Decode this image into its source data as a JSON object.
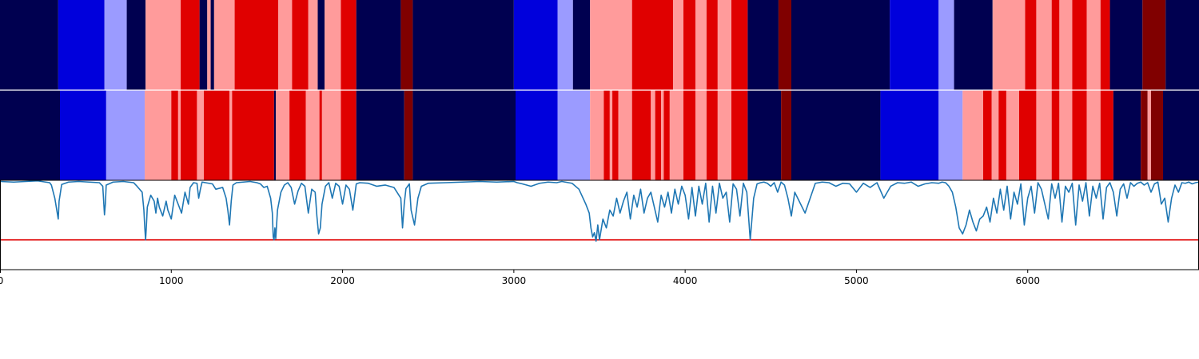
{
  "chart_data": {
    "type": "segmentation-strips-with-line",
    "x_range": [
      0,
      7000
    ],
    "x_ticks": [
      0,
      1000,
      2000,
      3000,
      4000,
      5000,
      6000
    ],
    "x_tick_labels": [
      "0",
      "1000",
      "2000",
      "3000",
      "4000",
      "5000",
      "6000"
    ],
    "colors": {
      "0": "#000050",
      "1": "#0000dc",
      "2": "#9b9bff",
      "3": "#ff9b9b",
      "4": "#e00000",
      "5": "#800000"
    },
    "strips": [
      {
        "segments": [
          [
            0,
            340,
            0
          ],
          [
            340,
            610,
            1
          ],
          [
            610,
            740,
            2
          ],
          [
            740,
            850,
            0
          ],
          [
            850,
            1055,
            3
          ],
          [
            1055,
            1165,
            4
          ],
          [
            1165,
            1210,
            0
          ],
          [
            1210,
            1230,
            3
          ],
          [
            1230,
            1250,
            0
          ],
          [
            1250,
            1370,
            3
          ],
          [
            1370,
            1625,
            4
          ],
          [
            1625,
            1705,
            3
          ],
          [
            1705,
            1800,
            4
          ],
          [
            1800,
            1855,
            3
          ],
          [
            1855,
            1895,
            0
          ],
          [
            1895,
            1990,
            3
          ],
          [
            1990,
            2080,
            4
          ],
          [
            2080,
            2340,
            0
          ],
          [
            2340,
            2410,
            5
          ],
          [
            2410,
            3000,
            0
          ],
          [
            3000,
            3255,
            1
          ],
          [
            3255,
            3345,
            2
          ],
          [
            3345,
            3445,
            0
          ],
          [
            3445,
            3690,
            3
          ],
          [
            3690,
            3930,
            4
          ],
          [
            3930,
            3990,
            3
          ],
          [
            3990,
            4060,
            4
          ],
          [
            4060,
            4125,
            3
          ],
          [
            4125,
            4190,
            4
          ],
          [
            4190,
            4270,
            3
          ],
          [
            4270,
            4365,
            4
          ],
          [
            4365,
            4545,
            0
          ],
          [
            4545,
            4620,
            5
          ],
          [
            4620,
            5195,
            0
          ],
          [
            5195,
            5480,
            1
          ],
          [
            5480,
            5570,
            2
          ],
          [
            5570,
            5795,
            0
          ],
          [
            5795,
            5985,
            3
          ],
          [
            5985,
            6050,
            4
          ],
          [
            6050,
            6140,
            3
          ],
          [
            6140,
            6185,
            4
          ],
          [
            6185,
            6260,
            3
          ],
          [
            6260,
            6345,
            4
          ],
          [
            6345,
            6425,
            3
          ],
          [
            6425,
            6480,
            4
          ],
          [
            6480,
            6670,
            0
          ],
          [
            6670,
            6805,
            5
          ],
          [
            6805,
            7000,
            0
          ]
        ]
      },
      {
        "segments": [
          [
            0,
            350,
            0
          ],
          [
            350,
            620,
            1
          ],
          [
            620,
            845,
            2
          ],
          [
            845,
            1000,
            3
          ],
          [
            1000,
            1040,
            4
          ],
          [
            1040,
            1055,
            3
          ],
          [
            1055,
            1150,
            4
          ],
          [
            1150,
            1190,
            3
          ],
          [
            1190,
            1340,
            4
          ],
          [
            1340,
            1355,
            3
          ],
          [
            1355,
            1600,
            4
          ],
          [
            1600,
            1610,
            0
          ],
          [
            1610,
            1690,
            3
          ],
          [
            1690,
            1785,
            4
          ],
          [
            1785,
            1865,
            3
          ],
          [
            1865,
            1880,
            4
          ],
          [
            1880,
            1990,
            3
          ],
          [
            1990,
            2080,
            4
          ],
          [
            2080,
            2360,
            0
          ],
          [
            2360,
            2410,
            5
          ],
          [
            2410,
            3010,
            0
          ],
          [
            3010,
            3255,
            1
          ],
          [
            3255,
            3445,
            2
          ],
          [
            3445,
            3525,
            3
          ],
          [
            3525,
            3560,
            4
          ],
          [
            3560,
            3575,
            3
          ],
          [
            3575,
            3610,
            4
          ],
          [
            3610,
            3690,
            3
          ],
          [
            3690,
            3800,
            4
          ],
          [
            3800,
            3825,
            3
          ],
          [
            3825,
            3860,
            4
          ],
          [
            3860,
            3875,
            3
          ],
          [
            3875,
            3910,
            4
          ],
          [
            3910,
            3990,
            3
          ],
          [
            3990,
            4060,
            4
          ],
          [
            4060,
            4125,
            3
          ],
          [
            4125,
            4190,
            4
          ],
          [
            4190,
            4270,
            3
          ],
          [
            4270,
            4365,
            4
          ],
          [
            4365,
            4560,
            0
          ],
          [
            4560,
            4620,
            5
          ],
          [
            4620,
            5140,
            0
          ],
          [
            5140,
            5480,
            1
          ],
          [
            5480,
            5620,
            2
          ],
          [
            5620,
            5740,
            3
          ],
          [
            5740,
            5790,
            4
          ],
          [
            5790,
            5830,
            3
          ],
          [
            5830,
            5875,
            4
          ],
          [
            5875,
            5950,
            3
          ],
          [
            5950,
            6050,
            4
          ],
          [
            6050,
            6140,
            3
          ],
          [
            6140,
            6185,
            4
          ],
          [
            6185,
            6260,
            3
          ],
          [
            6260,
            6345,
            4
          ],
          [
            6345,
            6425,
            3
          ],
          [
            6425,
            6500,
            4
          ],
          [
            6500,
            6660,
            0
          ],
          [
            6660,
            6700,
            5
          ],
          [
            6700,
            6720,
            3
          ],
          [
            6720,
            6790,
            5
          ],
          [
            6790,
            7000,
            0
          ]
        ]
      }
    ],
    "line": {
      "y_range": [
        0,
        1.5
      ],
      "threshold": 0.5,
      "threshold_color": "#e00000",
      "line_color": "#1f77b4",
      "x": [
        0,
        80,
        150,
        220,
        290,
        300,
        320,
        340,
        345,
        360,
        400,
        460,
        520,
        580,
        600,
        610,
        615,
        620,
        660,
        720,
        780,
        800,
        830,
        840,
        845,
        850,
        855,
        860,
        880,
        900,
        910,
        920,
        930,
        950,
        970,
        980,
        1000,
        1020,
        1040,
        1060,
        1080,
        1100,
        1110,
        1130,
        1150,
        1160,
        1170,
        1180,
        1200,
        1240,
        1260,
        1300,
        1320,
        1330,
        1340,
        1350,
        1360,
        1380,
        1420,
        1460,
        1500,
        1520,
        1540,
        1560,
        1580,
        1590,
        1595,
        1600,
        1605,
        1610,
        1620,
        1640,
        1660,
        1680,
        1700,
        1720,
        1740,
        1760,
        1780,
        1800,
        1820,
        1840,
        1850,
        1860,
        1870,
        1880,
        1900,
        1920,
        1940,
        1960,
        1980,
        2000,
        2020,
        2040,
        2060,
        2080,
        2100,
        2150,
        2200,
        2250,
        2300,
        2340,
        2350,
        2360,
        2370,
        2390,
        2400,
        2420,
        2440,
        2460,
        2500,
        2600,
        2700,
        2800,
        2900,
        3000,
        3020,
        3050,
        3100,
        3150,
        3200,
        3250,
        3280,
        3300,
        3340,
        3380,
        3420,
        3440,
        3450,
        3460,
        3470,
        3480,
        3490,
        3500,
        3520,
        3540,
        3560,
        3580,
        3600,
        3620,
        3640,
        3660,
        3680,
        3700,
        3720,
        3740,
        3760,
        3780,
        3800,
        3820,
        3840,
        3860,
        3880,
        3900,
        3920,
        3940,
        3960,
        3980,
        4000,
        4020,
        4040,
        4060,
        4080,
        4100,
        4120,
        4140,
        4160,
        4180,
        4200,
        4220,
        4240,
        4260,
        4280,
        4300,
        4320,
        4340,
        4360,
        4380,
        4400,
        4420,
        4440,
        4460,
        4480,
        4500,
        4520,
        4540,
        4560,
        4580,
        4600,
        4620,
        4640,
        4700,
        4760,
        4800,
        4840,
        4880,
        4920,
        4960,
        5000,
        5040,
        5080,
        5120,
        5160,
        5200,
        5240,
        5280,
        5320,
        5360,
        5400,
        5440,
        5480,
        5500,
        5520,
        5540,
        5560,
        5580,
        5600,
        5620,
        5640,
        5660,
        5680,
        5700,
        5720,
        5740,
        5760,
        5780,
        5800,
        5820,
        5840,
        5860,
        5880,
        5900,
        5920,
        5940,
        5960,
        5980,
        6000,
        6020,
        6040,
        6060,
        6080,
        6100,
        6120,
        6140,
        6160,
        6180,
        6200,
        6220,
        6240,
        6260,
        6280,
        6300,
        6320,
        6340,
        6360,
        6380,
        6400,
        6420,
        6440,
        6460,
        6480,
        6500,
        6520,
        6540,
        6560,
        6580,
        6600,
        6620,
        6640,
        6660,
        6680,
        6700,
        6720,
        6740,
        6760,
        6780,
        6800,
        6820,
        6840,
        6860,
        6880,
        6900,
        6920,
        6940,
        6960,
        6980,
        7000
      ],
      "y": [
        1.48,
        1.47,
        1.48,
        1.49,
        1.46,
        1.42,
        1.2,
        0.85,
        1.15,
        1.43,
        1.47,
        1.48,
        1.47,
        1.46,
        1.4,
        0.92,
        1.1,
        1.42,
        1.47,
        1.48,
        1.46,
        1.4,
        1.3,
        1.0,
        0.72,
        0.5,
        0.75,
        1.05,
        1.25,
        1.15,
        0.95,
        1.2,
        1.05,
        0.9,
        1.15,
        1.0,
        0.85,
        1.25,
        1.1,
        0.95,
        1.3,
        1.1,
        1.38,
        1.46,
        1.45,
        1.2,
        1.35,
        1.47,
        1.46,
        1.44,
        1.35,
        1.38,
        1.2,
        1.0,
        0.75,
        1.15,
        1.42,
        1.46,
        1.47,
        1.48,
        1.46,
        1.44,
        1.38,
        1.4,
        1.2,
        0.95,
        0.55,
        0.5,
        0.7,
        0.52,
        1.0,
        1.3,
        1.42,
        1.46,
        1.38,
        1.1,
        1.32,
        1.45,
        1.4,
        0.95,
        1.35,
        1.3,
        0.9,
        0.6,
        0.7,
        1.1,
        1.4,
        1.46,
        1.2,
        1.45,
        1.4,
        1.1,
        1.42,
        1.35,
        1.0,
        1.44,
        1.46,
        1.45,
        1.4,
        1.42,
        1.38,
        1.2,
        0.7,
        1.1,
        1.36,
        1.44,
        1.0,
        0.75,
        1.2,
        1.4,
        1.45,
        1.46,
        1.47,
        1.48,
        1.47,
        1.48,
        1.46,
        1.44,
        1.4,
        1.45,
        1.47,
        1.46,
        1.48,
        1.47,
        1.45,
        1.35,
        1.1,
        0.95,
        0.7,
        0.55,
        0.62,
        0.48,
        0.75,
        0.5,
        0.85,
        0.7,
        1.0,
        0.9,
        1.2,
        0.95,
        1.15,
        1.3,
        0.85,
        1.25,
        1.05,
        1.35,
        0.95,
        1.2,
        1.3,
        1.05,
        0.8,
        1.25,
        1.05,
        1.3,
        0.95,
        1.35,
        1.1,
        1.4,
        1.25,
        0.85,
        1.38,
        0.9,
        1.4,
        1.1,
        1.45,
        0.8,
        1.4,
        0.95,
        1.45,
        1.2,
        1.3,
        0.8,
        1.44,
        1.35,
        0.9,
        1.45,
        1.3,
        0.5,
        1.2,
        1.44,
        1.46,
        1.47,
        1.45,
        1.4,
        1.46,
        1.3,
        1.47,
        1.42,
        1.2,
        0.9,
        1.3,
        0.95,
        1.45,
        1.47,
        1.46,
        1.4,
        1.45,
        1.44,
        1.3,
        1.45,
        1.38,
        1.46,
        1.2,
        1.4,
        1.46,
        1.45,
        1.47,
        1.4,
        1.44,
        1.46,
        1.45,
        1.47,
        1.46,
        1.4,
        1.3,
        1.05,
        0.7,
        0.6,
        0.75,
        1.0,
        0.8,
        0.65,
        0.85,
        0.9,
        1.05,
        0.8,
        1.2,
        0.95,
        1.35,
        1.0,
        1.4,
        0.85,
        1.3,
        1.1,
        1.44,
        0.75,
        1.2,
        1.4,
        0.95,
        1.46,
        1.35,
        1.1,
        0.85,
        1.44,
        1.2,
        1.45,
        0.8,
        1.4,
        1.3,
        1.45,
        0.75,
        1.42,
        1.15,
        1.46,
        0.9,
        1.4,
        1.2,
        1.45,
        0.85,
        1.38,
        1.46,
        1.3,
        0.9,
        1.35,
        1.44,
        1.2,
        1.46,
        1.4,
        1.45,
        1.47,
        1.42,
        1.46,
        1.3,
        1.44,
        1.47,
        1.1,
        1.2,
        0.8,
        1.2,
        1.42,
        1.3,
        1.46,
        1.45,
        1.47,
        1.44,
        1.46,
        1.47
      ]
    }
  }
}
